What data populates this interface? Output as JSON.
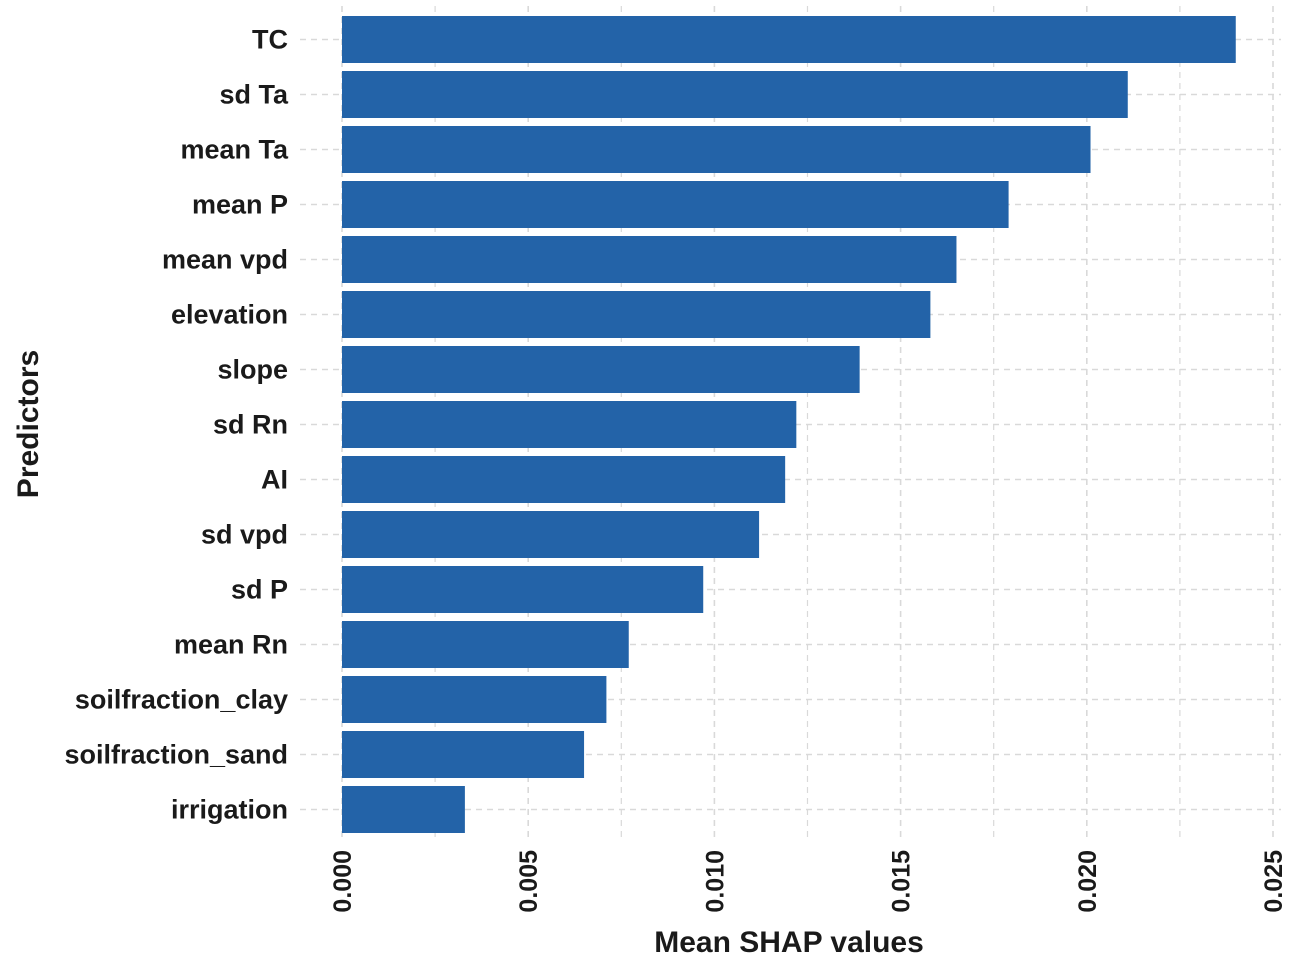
{
  "chart_data": {
    "type": "bar",
    "orientation": "horizontal",
    "categories": [
      "TC",
      "sd Ta",
      "mean Ta",
      "mean P",
      "mean vpd",
      "elevation",
      "slope",
      "sd Rn",
      "AI",
      "sd vpd",
      "sd P",
      "mean Rn",
      "soilfraction_clay",
      "soilfraction_sand",
      "irrigation"
    ],
    "values": [
      0.024,
      0.0211,
      0.0201,
      0.0179,
      0.0165,
      0.0158,
      0.0139,
      0.0122,
      0.0119,
      0.0112,
      0.0097,
      0.0077,
      0.0071,
      0.0065,
      0.0033
    ],
    "xlabel": "Mean SHAP values",
    "ylabel": "Predictors",
    "xlim": [
      0,
      0.025
    ],
    "x_ticks": [
      0.0,
      0.005,
      0.01,
      0.015,
      0.02,
      0.025
    ],
    "x_tick_labels": [
      "0.000",
      "0.005",
      "0.010",
      "0.015",
      "0.020",
      "0.025"
    ],
    "grid": true,
    "bar_color": "#2363a8",
    "grid_color": "#d9d9d9"
  }
}
